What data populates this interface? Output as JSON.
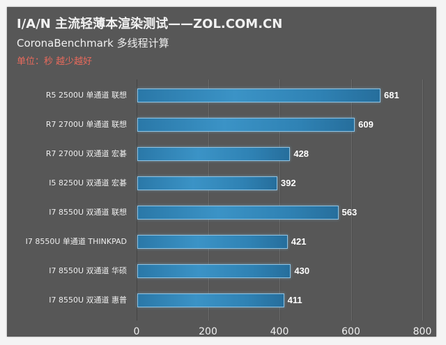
{
  "header": {
    "title": "I/A/N 主流轻薄本渲染测试——ZOL.COM.CN",
    "subtitle": "CoronaBenchmark 多线程计算",
    "unit_note": "单位：秒 越少越好"
  },
  "colors": {
    "panel_background": "#575757",
    "bar_fill": "#3b93c6",
    "bar_border": "#8fc3e3",
    "unit_note": "#e86a5c",
    "text": "#f0f0f0"
  },
  "chart_data": {
    "type": "bar",
    "orientation": "horizontal",
    "title": "I/A/N 主流轻薄本渲染测试——ZOL.COM.CN",
    "subtitle": "CoronaBenchmark 多线程计算",
    "annotation": "单位：秒 越少越好",
    "xlabel": "",
    "ylabel": "",
    "xlim": [
      0,
      800
    ],
    "x_ticks": [
      "0",
      "200",
      "400",
      "600",
      "800"
    ],
    "grid": true,
    "legend": null,
    "categories": [
      "R5 2500U 单通道 联想",
      "R7 2700U 单通道 联想",
      "R7 2700U 双通道 宏碁",
      "I5 8250U 双通道 宏碁",
      "I7 8550U 双通道 联想",
      "I7 8550U 单通道 THINKPAD",
      "I7 8550U 双通道 华硕",
      "I7 8550U 双通道 惠普"
    ],
    "values": [
      681,
      609,
      428,
      392,
      563,
      421,
      430,
      411
    ]
  }
}
